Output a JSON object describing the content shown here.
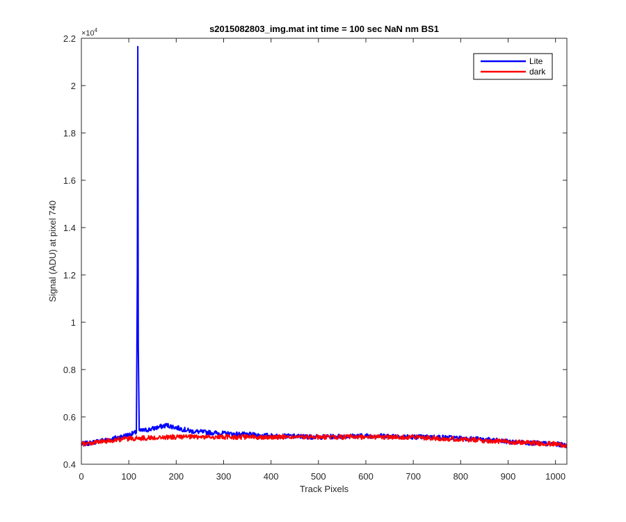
{
  "chart_data": {
    "type": "line",
    "title": "s2015082803_img.mat int time = 100 sec  NaN nm BS1",
    "xlabel": "Track Pixels",
    "ylabel": "Signal (ADU) at pixel 740",
    "xlim": [
      0,
      1024
    ],
    "ylim": [
      4000,
      22000
    ],
    "x_ticks": [
      0,
      100,
      200,
      300,
      400,
      500,
      600,
      700,
      800,
      900,
      1000
    ],
    "y_ticks": [
      4000,
      6000,
      8000,
      10000,
      12000,
      14000,
      16000,
      18000,
      20000,
      22000
    ],
    "y_tick_labels": [
      "0.4",
      "0.6",
      "0.8",
      "1",
      "1.2",
      "1.4",
      "1.6",
      "1.8",
      "2",
      "2.2"
    ],
    "y_exponent_label": "×10",
    "y_exponent_power": "4",
    "grid": false,
    "legend_position": "top-right",
    "series": [
      {
        "name": "Lite",
        "color": "#0000ff",
        "x": [
          0,
          20,
          40,
          60,
          80,
          100,
          110,
          116,
          118,
          119,
          120,
          122,
          124,
          130,
          150,
          170,
          180,
          200,
          230,
          260,
          300,
          350,
          400,
          450,
          500,
          550,
          600,
          650,
          700,
          750,
          800,
          850,
          900,
          950,
          1000,
          1023
        ],
        "y": [
          4850,
          4900,
          5000,
          5050,
          5150,
          5250,
          5300,
          5350,
          12000,
          21650,
          9000,
          5450,
          5400,
          5420,
          5500,
          5600,
          5650,
          5550,
          5400,
          5350,
          5300,
          5250,
          5200,
          5180,
          5150,
          5180,
          5200,
          5200,
          5150,
          5150,
          5100,
          5050,
          4950,
          4900,
          4850,
          4800
        ]
      },
      {
        "name": "dark",
        "color": "#ff0000",
        "x": [
          0,
          20,
          40,
          60,
          80,
          100,
          120,
          150,
          200,
          250,
          300,
          350,
          400,
          450,
          500,
          550,
          600,
          650,
          700,
          750,
          800,
          850,
          900,
          950,
          1000,
          1023
        ],
        "y": [
          4850,
          4900,
          4950,
          5000,
          5050,
          5080,
          5100,
          5120,
          5150,
          5150,
          5150,
          5150,
          5150,
          5150,
          5150,
          5150,
          5150,
          5150,
          5150,
          5100,
          5050,
          5000,
          4950,
          4900,
          4850,
          4800
        ]
      }
    ]
  }
}
